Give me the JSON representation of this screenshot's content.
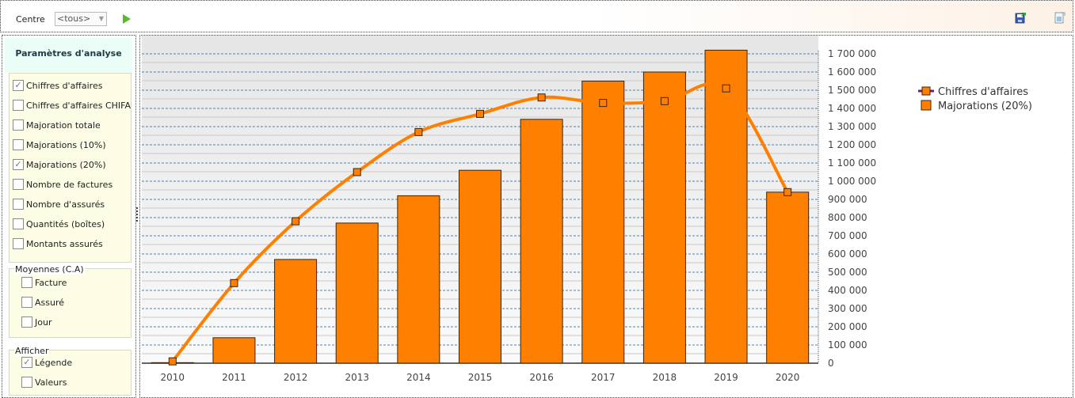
{
  "toolbar": {
    "centre_label": "Centre",
    "centre_value": "<tous>",
    "run_icon": "play-icon",
    "save_icon": "save-export-icon",
    "export_icon": "document-export-icon"
  },
  "panel": {
    "title": "Paramètres d'analyse",
    "metrics": [
      {
        "label": "Chiffres d'affaires",
        "checked": true
      },
      {
        "label": "Chiffres d'affaires CHIFA",
        "checked": false
      },
      {
        "label": "Majoration totale",
        "checked": false
      },
      {
        "label": "Majorations (10%)",
        "checked": false
      },
      {
        "label": "Majorations (20%)",
        "checked": true
      },
      {
        "label": "Nombre de factures",
        "checked": false
      },
      {
        "label": "Nombre d'assurés",
        "checked": false
      },
      {
        "label": "Quantités (boîtes)",
        "checked": false
      },
      {
        "label": "Montants assurés",
        "checked": false
      }
    ],
    "averages_title": "Moyennes (C.A)",
    "averages": [
      {
        "label": "Facture",
        "checked": false
      },
      {
        "label": "Assuré",
        "checked": false
      },
      {
        "label": "Jour",
        "checked": false
      }
    ],
    "display_title": "Afficher",
    "display": [
      {
        "label": "Légende",
        "checked": true
      },
      {
        "label": "Valeurs",
        "checked": false
      }
    ]
  },
  "colors": {
    "orange": "#ff8000",
    "bar_border": "#3a2410",
    "grid": "#1f5f9a",
    "legend_line_marker": "#7a1a6a"
  },
  "chart_data": {
    "type": "bar",
    "categories": [
      "2010",
      "2011",
      "2012",
      "2013",
      "2014",
      "2015",
      "2016",
      "2017",
      "2018",
      "2019",
      "2020"
    ],
    "series": [
      {
        "name": "Chiffres d'affaires",
        "kind": "line",
        "values": [
          10000,
          440000,
          780000,
          1050000,
          1270000,
          1370000,
          1460000,
          1430000,
          1440000,
          1510000,
          940000
        ]
      },
      {
        "name": "Majorations (20%)",
        "kind": "bar",
        "values": [
          3000,
          140000,
          570000,
          770000,
          920000,
          1060000,
          1340000,
          1550000,
          1600000,
          1720000,
          940000
        ]
      }
    ],
    "ylim": [
      0,
      1700000
    ],
    "yticks": [
      0,
      100000,
      200000,
      300000,
      400000,
      500000,
      600000,
      700000,
      800000,
      900000,
      1000000,
      1100000,
      1200000,
      1300000,
      1400000,
      1500000,
      1600000,
      1700000
    ],
    "ytick_labels": [
      "0",
      "100 000",
      "200 000",
      "300 000",
      "400 000",
      "500 000",
      "600 000",
      "700 000",
      "800 000",
      "900 000",
      "1 000 000",
      "1 100 000",
      "1 200 000",
      "1 300 000",
      "1 400 000",
      "1 500 000",
      "1 600 000",
      "1 700 000"
    ],
    "y_axis_side": "right",
    "grid": true,
    "legend_position": "top-right",
    "title": "",
    "xlabel": "",
    "ylabel": ""
  }
}
